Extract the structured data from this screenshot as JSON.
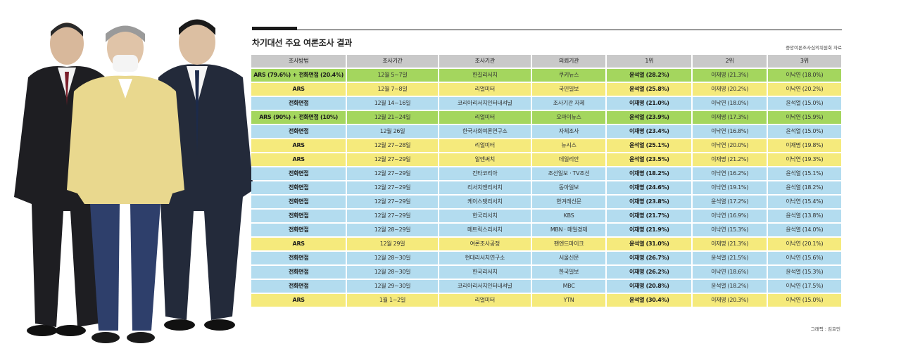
{
  "title": "차기대선 주요 여론조사 결과",
  "source": "중앙여론조사심의위원회 자료",
  "credit": "그래픽 : 김효민",
  "colors": {
    "green": "#a4d65e",
    "yellow": "#f5ea7c",
    "blue": "#b3dcef",
    "header": "#c9c9c9"
  },
  "headers": [
    "조사방법",
    "조사기간",
    "조사기관",
    "의뢰기관",
    "1위",
    "2위",
    "3위"
  ],
  "rows": [
    {
      "color": "green",
      "cells": [
        "ARS (79.6%) + 전화면접 (20.4%)",
        "12월 5~7일",
        "한길리서치",
        "쿠키뉴스",
        "윤석열 (28.2%)",
        "이재명 (21.3%)",
        "이낙연 (18.0%)"
      ]
    },
    {
      "color": "yellow",
      "cells": [
        "ARS",
        "12월 7~8일",
        "리얼미터",
        "국민일보",
        "윤석열 (25.8%)",
        "이재명 (20.2%)",
        "이낙연 (20.2%)"
      ]
    },
    {
      "color": "blue",
      "cells": [
        "전화면접",
        "12월 14~16일",
        "코리아리서치인터내셔널",
        "조사기관 자체",
        "이재명 (21.0%)",
        "이낙연 (18.0%)",
        "윤석열 (15.0%)"
      ]
    },
    {
      "color": "green",
      "cells": [
        "ARS (90%) + 전화면접 (10%)",
        "12월 21~24일",
        "리얼미터",
        "오마이뉴스",
        "윤석열 (23.9%)",
        "이재명 (17.3%)",
        "이낙연 (15.9%)"
      ]
    },
    {
      "color": "blue",
      "cells": [
        "전화면접",
        "12월 26일",
        "한국사회여론연구소",
        "자체조사",
        "이재명 (23.4%)",
        "이낙연 (16.8%)",
        "윤석열 (15.0%)"
      ]
    },
    {
      "color": "yellow",
      "cells": [
        "ARS",
        "12월 27~28일",
        "리얼미터",
        "뉴시스",
        "윤석열 (25.1%)",
        "이낙연 (20.0%)",
        "이재명 (19.8%)"
      ]
    },
    {
      "color": "yellow",
      "cells": [
        "ARS",
        "12월 27~29일",
        "알앤써치",
        "데일리안",
        "윤석열 (23.5%)",
        "이재명 (21.2%)",
        "이낙연 (19.3%)"
      ]
    },
    {
      "color": "blue",
      "cells": [
        "전화면접",
        "12월 27~29일",
        "칸타코리아",
        "조선일보 · TV조선",
        "이재명 (18.2%)",
        "이낙연 (16.2%)",
        "윤석열 (15.1%)"
      ]
    },
    {
      "color": "blue",
      "cells": [
        "전화면접",
        "12월 27~29일",
        "리서치앤리서치",
        "동아일보",
        "이재명 (24.6%)",
        "이낙연 (19.1%)",
        "윤석열 (18.2%)"
      ]
    },
    {
      "color": "blue",
      "cells": [
        "전화면접",
        "12월 27~29일",
        "케이스탯리서치",
        "한겨레신문",
        "이재명 (23.8%)",
        "윤석열 (17.2%)",
        "이낙연 (15.4%)"
      ]
    },
    {
      "color": "blue",
      "cells": [
        "전화면접",
        "12월 27~29일",
        "한국리서치",
        "KBS",
        "이재명 (21.7%)",
        "이낙연 (16.9%)",
        "윤석열 (13.8%)"
      ]
    },
    {
      "color": "blue",
      "cells": [
        "전화면접",
        "12월 28~29일",
        "메트릭스리서치",
        "MBN · 매일경제",
        "이재명 (21.9%)",
        "이낙연 (15.3%)",
        "윤석열 (14.0%)"
      ]
    },
    {
      "color": "yellow",
      "cells": [
        "ARS",
        "12월 29일",
        "여론조사공정",
        "팬엔드마이크",
        "윤석열 (31.0%)",
        "이재명 (21.3%)",
        "이낙연 (20.1%)"
      ]
    },
    {
      "color": "blue",
      "cells": [
        "전화면접",
        "12월 28~30일",
        "현대리서치연구소",
        "서울신문",
        "이재명 (26.7%)",
        "윤석열 (21.5%)",
        "이낙연 (15.6%)"
      ]
    },
    {
      "color": "blue",
      "cells": [
        "전화면접",
        "12월 28~30일",
        "한국리서치",
        "한국일보",
        "이재명 (26.2%)",
        "이낙연 (18.6%)",
        "윤석열 (15.3%)"
      ]
    },
    {
      "color": "blue",
      "cells": [
        "전화면접",
        "12월 29~30일",
        "코리아리서치인터내셔널",
        "MBC",
        "이재명 (20.8%)",
        "윤석열 (18.2%)",
        "이낙연 (17.5%)"
      ]
    },
    {
      "color": "yellow",
      "cells": [
        "ARS",
        "1월 1~2일",
        "리얼미터",
        "YTN",
        "윤석열 (30.4%)",
        "이재명 (20.3%)",
        "이낙연 (15.0%)"
      ]
    }
  ]
}
